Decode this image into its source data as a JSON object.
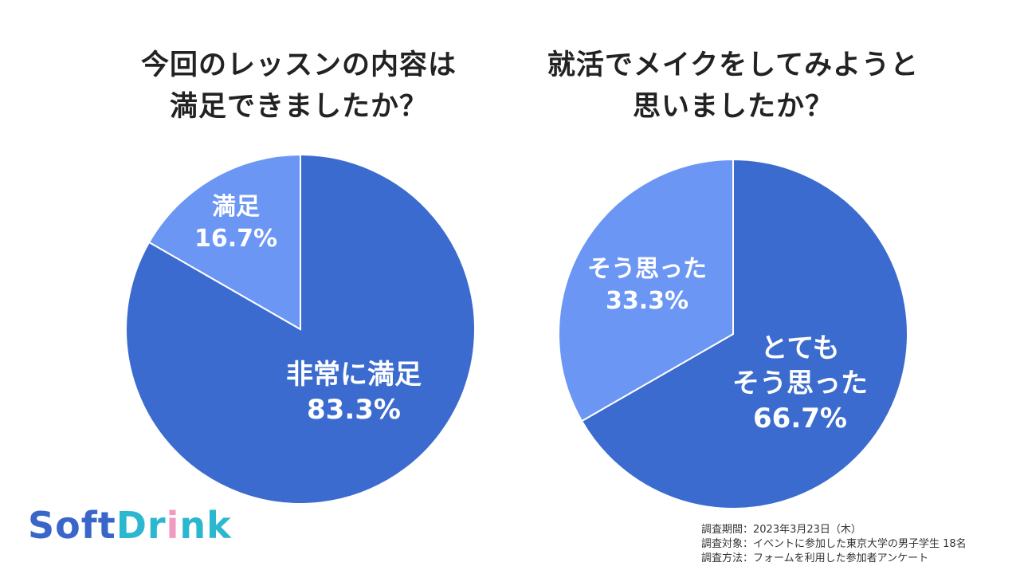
{
  "chart_data": [
    {
      "type": "pie",
      "title_lines": [
        "今回のレッスンの内容は",
        "満足できましたか？"
      ],
      "slices": [
        {
          "label": "非常に満足",
          "value": 83.3,
          "display": "83.3%",
          "color": "#3b6bcf"
        },
        {
          "label": "満足",
          "value": 16.7,
          "display": "16.7%",
          "color": "#6b96f3"
        }
      ]
    },
    {
      "type": "pie",
      "title_lines": [
        "就活でメイクをしてみようと",
        "思いましたか？"
      ],
      "slices": [
        {
          "label": "とても\nそう思った",
          "value": 66.7,
          "display": "66.7%",
          "color": "#3b6bcf"
        },
        {
          "label": "そう思った",
          "value": 33.3,
          "display": "33.3%",
          "color": "#6b96f3"
        }
      ]
    }
  ],
  "logo": {
    "part1": "Soft",
    "part2": "Dr",
    "dot": "i",
    "part3": "nk"
  },
  "survey": {
    "period": "調査期間：2023年3月23日（木）",
    "target": "調査対象：イベントに参加した東京大学の男子学生 18名",
    "method": "調査方法：フォームを利用した参加者アンケート"
  }
}
